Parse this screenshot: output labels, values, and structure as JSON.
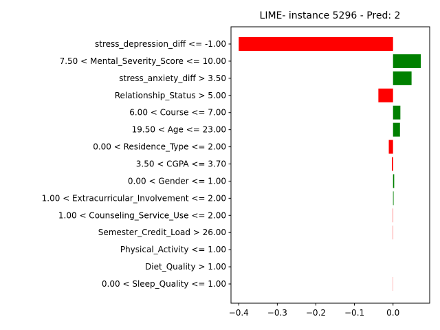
{
  "chart_data": {
    "type": "bar",
    "orientation": "horizontal",
    "title": "LIME- instance 5296 - Pred: 2",
    "xlabel": "",
    "ylabel": "",
    "xlim": [
      -0.42,
      0.095
    ],
    "xticks": [
      -0.4,
      -0.3,
      -0.2,
      -0.1,
      0.0
    ],
    "xtick_labels": [
      "−0.4",
      "−0.3",
      "−0.2",
      "−0.1",
      "0.0"
    ],
    "grid": false,
    "positive_color": "#008000",
    "negative_color": "#ff0000",
    "categories": [
      "stress_depression_diff <= -1.00",
      "7.50 < Mental_Severity_Score <= 10.00",
      "stress_anxiety_diff > 3.50",
      "Relationship_Status > 5.00",
      "6.00 < Course <= 7.00",
      "19.50 < Age <= 23.00",
      "0.00 < Residence_Type <= 2.00",
      "3.50 < CGPA <= 3.70",
      "0.00 < Gender <= 1.00",
      "1.00 < Extracurricular_Involvement <= 2.00",
      "1.00 < Counseling_Service_Use <= 2.00",
      "Semester_Credit_Load > 26.00",
      "Physical_Activity <= 1.00",
      "Diet_Quality > 1.00",
      "0.00 < Sleep_Quality <= 1.00"
    ],
    "values": [
      -0.4,
      0.072,
      0.048,
      -0.038,
      0.019,
      0.018,
      -0.011,
      -0.003,
      0.003,
      0.0015,
      -0.0008,
      -0.0007,
      0.0,
      0.0,
      -0.0005
    ]
  }
}
